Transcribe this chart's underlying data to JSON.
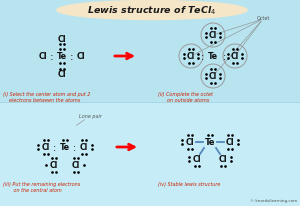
{
  "title": "Lewis structure of TeCl$_4$",
  "bg_color": "#b8e4f0",
  "bg_color2": "#c5ecf7",
  "title_bg": "#f5e6c8",
  "text_dark": "#111111",
  "text_red": "#cc2200",
  "text_gray": "#555555",
  "text_blue": "#5588bb",
  "watermark": "© knordsilearning.com",
  "cap_i": "(i) Select the center atom and put 2\n    electrons between the atoms",
  "cap_ii": "(ii) Complete the octet\n      on outside atoms",
  "cap_iii": "(iii) Put the remaining electrons\n       on the central atom",
  "cap_iv": "(iv) Stable lewis structure"
}
